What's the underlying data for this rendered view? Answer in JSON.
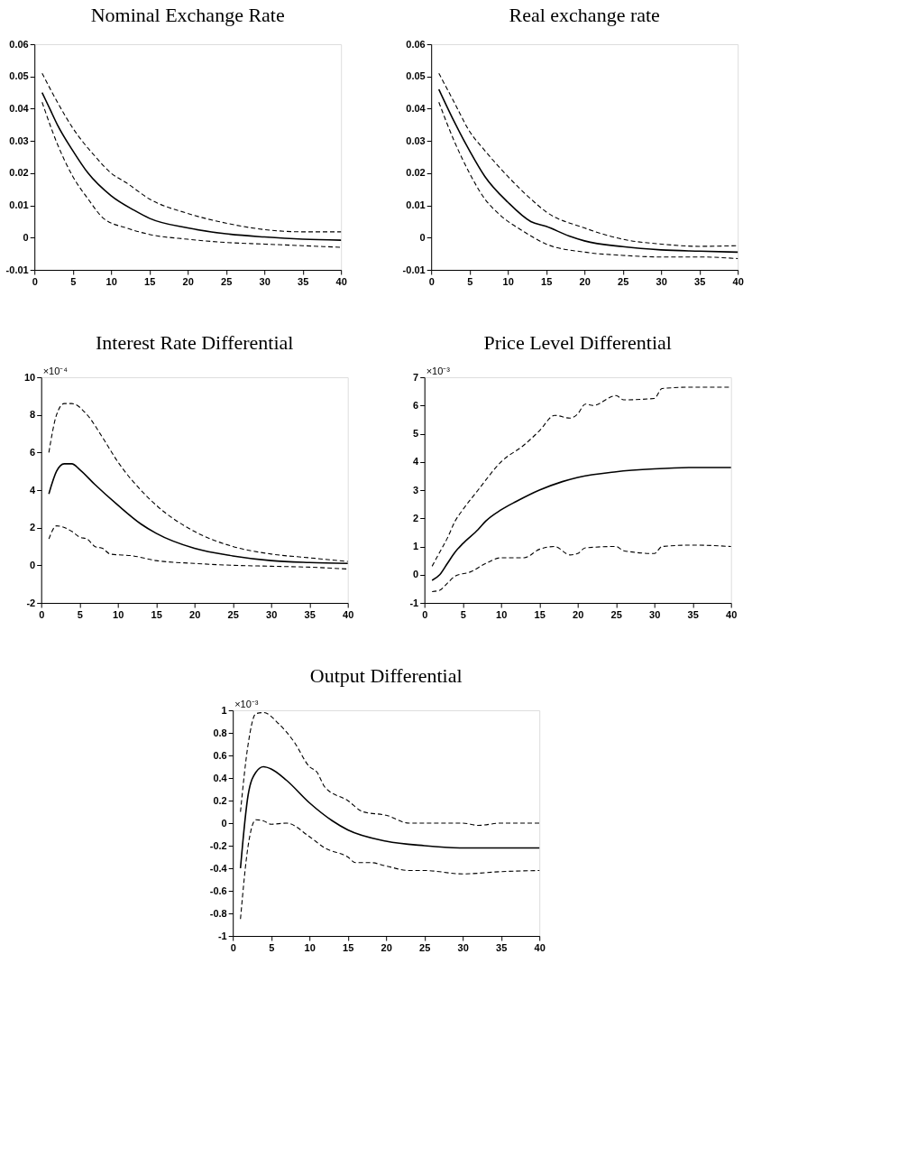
{
  "chart_data": [
    {
      "type": "line",
      "title": "Nominal Exchange Rate",
      "xlim": [
        0,
        40
      ],
      "xticks": [
        0,
        5,
        10,
        15,
        20,
        25,
        30,
        35,
        40
      ],
      "ylim": [
        -0.01,
        0.06
      ],
      "yticks": [
        -0.01,
        0,
        0.01,
        0.02,
        0.03,
        0.04,
        0.05,
        0.06
      ],
      "grid": false,
      "series": [
        {
          "color": "#000000",
          "line_style": "solid",
          "x": [
            1,
            2,
            3,
            5,
            7,
            10,
            13,
            15,
            20,
            25,
            30,
            35,
            40
          ],
          "values": [
            0.045,
            0.04,
            0.035,
            0.027,
            0.02,
            0.013,
            0.0085,
            0.006,
            0.003,
            0.0012,
            0.0002,
            -0.0005,
            -0.0008
          ]
        },
        {
          "color": "#000000",
          "line_style": "dashed",
          "x": [
            1,
            3,
            5,
            8,
            10,
            12,
            15,
            20,
            25,
            30,
            35,
            40
          ],
          "values": [
            0.051,
            0.042,
            0.034,
            0.025,
            0.02,
            0.017,
            0.012,
            0.0075,
            0.0045,
            0.0025,
            0.0018,
            0.0018
          ]
        },
        {
          "color": "#000000",
          "line_style": "dashed",
          "x": [
            1,
            3,
            5,
            7,
            9,
            12,
            15,
            20,
            25,
            30,
            35,
            40
          ],
          "values": [
            0.042,
            0.029,
            0.019,
            0.012,
            0.006,
            0.003,
            0.001,
            -0.0005,
            -0.0015,
            -0.002,
            -0.0025,
            -0.003
          ]
        }
      ]
    },
    {
      "type": "line",
      "title": "Real exchange rate",
      "xlim": [
        0,
        40
      ],
      "xticks": [
        0,
        5,
        10,
        15,
        20,
        25,
        30,
        35,
        40
      ],
      "ylim": [
        -0.01,
        0.06
      ],
      "yticks": [
        -0.01,
        0,
        0.01,
        0.02,
        0.03,
        0.04,
        0.05,
        0.06
      ],
      "grid": false,
      "series": [
        {
          "color": "#000000",
          "line_style": "solid",
          "x": [
            1,
            3,
            5,
            7,
            10,
            13,
            15,
            18,
            20,
            25,
            30,
            35,
            40
          ],
          "values": [
            0.046,
            0.036,
            0.027,
            0.019,
            0.011,
            0.005,
            0.0035,
            0.0005,
            -0.001,
            -0.0028,
            -0.0038,
            -0.0042,
            -0.0045
          ]
        },
        {
          "color": "#000000",
          "line_style": "dashed",
          "x": [
            1,
            3,
            5,
            7,
            10,
            13,
            15,
            20,
            25,
            30,
            35,
            40
          ],
          "values": [
            0.051,
            0.042,
            0.033,
            0.027,
            0.019,
            0.012,
            0.008,
            0.003,
            -0.0005,
            -0.002,
            -0.0027,
            -0.0025
          ]
        },
        {
          "color": "#000000",
          "line_style": "dashed",
          "x": [
            1,
            3,
            5,
            7,
            9,
            12,
            15,
            20,
            25,
            30,
            35,
            40
          ],
          "values": [
            0.042,
            0.03,
            0.02,
            0.012,
            0.007,
            0.002,
            -0.002,
            -0.0045,
            -0.0055,
            -0.006,
            -0.006,
            -0.0065
          ]
        }
      ]
    },
    {
      "type": "line",
      "title": "Interest Rate Differential",
      "annotations": [
        "×10⁻⁴"
      ],
      "xlim": [
        0,
        40
      ],
      "xticks": [
        0,
        5,
        10,
        15,
        20,
        25,
        30,
        35,
        40
      ],
      "ylim": [
        -2,
        10
      ],
      "yticks": [
        -2,
        0,
        2,
        4,
        6,
        8,
        10
      ],
      "grid": false,
      "series": [
        {
          "color": "#000000",
          "line_style": "solid",
          "x": [
            1,
            2,
            3,
            4,
            5,
            7,
            10,
            13,
            15,
            20,
            25,
            30,
            35,
            40
          ],
          "values": [
            3.8,
            5.0,
            5.4,
            5.4,
            5.1,
            4.3,
            3.2,
            2.2,
            1.7,
            0.9,
            0.5,
            0.25,
            0.15,
            0.1
          ]
        },
        {
          "color": "#000000",
          "line_style": "dashed",
          "x": [
            1,
            2,
            3,
            4,
            6,
            8,
            10,
            13,
            15,
            20,
            25,
            30,
            35,
            40
          ],
          "values": [
            6.0,
            8.0,
            8.6,
            8.6,
            8.0,
            6.8,
            5.5,
            4.0,
            3.2,
            1.8,
            1.0,
            0.6,
            0.4,
            0.2
          ]
        },
        {
          "color": "#000000",
          "line_style": "dashed",
          "x": [
            1,
            2,
            4,
            5,
            6,
            7,
            8,
            9,
            12,
            15,
            20,
            25,
            30,
            35,
            40
          ],
          "values": [
            1.4,
            2.1,
            1.8,
            1.5,
            1.4,
            1.0,
            0.9,
            0.6,
            0.5,
            0.25,
            0.1,
            0.0,
            -0.05,
            -0.1,
            -0.2
          ]
        }
      ]
    },
    {
      "type": "line",
      "title": "Price Level Differential",
      "annotations": [
        "×10⁻³"
      ],
      "xlim": [
        0,
        40
      ],
      "xticks": [
        0,
        5,
        10,
        15,
        20,
        25,
        30,
        35,
        40
      ],
      "ylim": [
        -1,
        7
      ],
      "yticks": [
        -1,
        0,
        1,
        2,
        3,
        4,
        5,
        6,
        7
      ],
      "grid": false,
      "series": [
        {
          "color": "#000000",
          "line_style": "solid",
          "x": [
            1,
            2,
            3,
            4,
            5,
            7,
            8,
            10,
            12,
            15,
            18,
            20,
            25,
            30,
            35,
            40
          ],
          "values": [
            -0.2,
            0.0,
            0.4,
            0.8,
            1.1,
            1.6,
            1.9,
            2.3,
            2.6,
            3.0,
            3.3,
            3.45,
            3.65,
            3.75,
            3.8,
            3.8
          ]
        },
        {
          "color": "#000000",
          "line_style": "dashed",
          "x": [
            1,
            2,
            3,
            4,
            5,
            7,
            10,
            13,
            15,
            17,
            19,
            20,
            21,
            22,
            25,
            26,
            30,
            31,
            35,
            40
          ],
          "values": [
            0.3,
            0.8,
            1.3,
            1.9,
            2.3,
            3.0,
            4.0,
            4.6,
            5.1,
            5.65,
            5.55,
            5.7,
            6.05,
            6.0,
            6.35,
            6.2,
            6.25,
            6.6,
            6.65,
            6.65
          ]
        },
        {
          "color": "#000000",
          "line_style": "dashed",
          "x": [
            1,
            2,
            3,
            4,
            6,
            8,
            10,
            13,
            15,
            17,
            19,
            20,
            21,
            25,
            26,
            30,
            31,
            35,
            40
          ],
          "values": [
            -0.6,
            -0.55,
            -0.3,
            -0.05,
            0.1,
            0.4,
            0.6,
            0.6,
            0.9,
            1.0,
            0.7,
            0.75,
            0.95,
            1.0,
            0.85,
            0.75,
            1.0,
            1.05,
            1.0
          ]
        }
      ]
    },
    {
      "type": "line",
      "title": "Output Differential",
      "annotations": [
        "×10⁻³"
      ],
      "xlim": [
        0,
        40
      ],
      "xticks": [
        0,
        5,
        10,
        15,
        20,
        25,
        30,
        35,
        40
      ],
      "ylim": [
        -1,
        1
      ],
      "yticks": [
        -1,
        -0.8,
        -0.6,
        -0.4,
        -0.2,
        0,
        0.2,
        0.4,
        0.6,
        0.8,
        1
      ],
      "grid": false,
      "series": [
        {
          "color": "#000000",
          "line_style": "solid",
          "x": [
            1,
            2,
            3,
            4,
            5,
            7,
            10,
            13,
            15,
            20,
            25,
            30,
            35,
            40
          ],
          "values": [
            -0.4,
            0.25,
            0.45,
            0.5,
            0.48,
            0.38,
            0.18,
            0.02,
            -0.06,
            -0.16,
            -0.2,
            -0.22,
            -0.22,
            -0.22
          ]
        },
        {
          "color": "#000000",
          "line_style": "dashed",
          "x": [
            1,
            2,
            3,
            4,
            6,
            8,
            10,
            11,
            12,
            15,
            17,
            20,
            23,
            30,
            32,
            35,
            40
          ],
          "values": [
            0.1,
            0.7,
            0.97,
            0.98,
            0.88,
            0.72,
            0.5,
            0.45,
            0.32,
            0.2,
            0.1,
            0.07,
            0.0,
            0.0,
            -0.02,
            0.0,
            0.0
          ]
        },
        {
          "color": "#000000",
          "line_style": "dashed",
          "x": [
            1,
            2,
            3,
            4,
            5,
            7,
            10,
            12,
            15,
            16,
            18,
            20,
            23,
            25,
            30,
            35,
            40
          ],
          "values": [
            -0.85,
            -0.2,
            0.03,
            0.02,
            -0.01,
            0.0,
            -0.12,
            -0.22,
            -0.3,
            -0.35,
            -0.35,
            -0.38,
            -0.42,
            -0.42,
            -0.45,
            -0.43,
            -0.42
          ]
        }
      ]
    }
  ]
}
